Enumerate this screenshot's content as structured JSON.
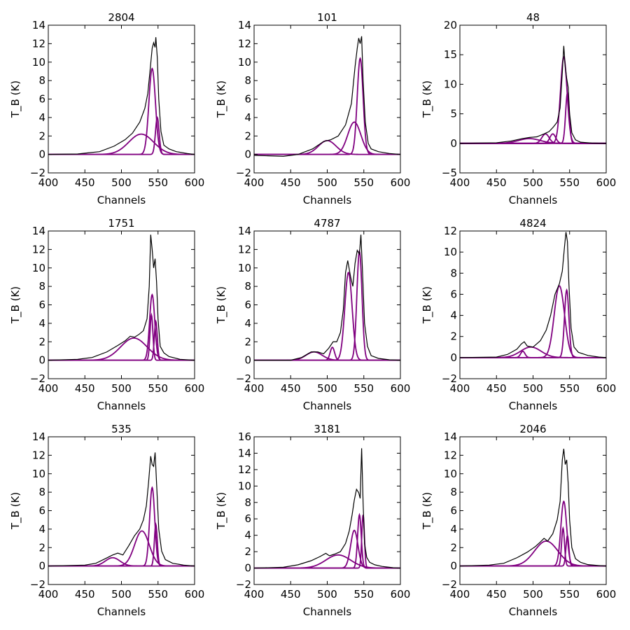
{
  "chart_data": [
    {
      "type": "line",
      "title": "2804",
      "xlabel": "Channels",
      "ylabel": "T_B (K)",
      "xlim": [
        400,
        600
      ],
      "ylim": [
        -2,
        14
      ],
      "xticks": [
        400,
        450,
        500,
        550,
        600
      ],
      "yticks": [
        -2,
        0,
        2,
        4,
        6,
        8,
        10,
        12,
        14
      ],
      "colors": {
        "spectrum": "#000000",
        "components": "#800080"
      },
      "components": [
        {
          "amp": 2.2,
          "center": 527,
          "width": 17
        },
        {
          "amp": 9.3,
          "center": 542,
          "width": 4.5
        },
        {
          "amp": 4.0,
          "center": 549,
          "width": 2.5
        }
      ],
      "spectrum": {
        "x": [
          400,
          440,
          470,
          490,
          505,
          515,
          525,
          532,
          536,
          539,
          542,
          544,
          546,
          547,
          549,
          551,
          554,
          558,
          565,
          575,
          590,
          600
        ],
        "y": [
          0.0,
          0.05,
          0.3,
          0.9,
          1.6,
          2.3,
          3.5,
          5.0,
          6.6,
          9.0,
          11.5,
          12.1,
          11.6,
          12.7,
          10.5,
          6.0,
          2.5,
          1.0,
          0.6,
          0.3,
          0.1,
          0.0
        ]
      }
    },
    {
      "type": "line",
      "title": "101",
      "xlabel": "Channels",
      "ylabel": "T_B (K)",
      "xlim": [
        400,
        600
      ],
      "ylim": [
        -2,
        14
      ],
      "xticks": [
        400,
        450,
        500,
        550,
        600
      ],
      "yticks": [
        -2,
        0,
        2,
        4,
        6,
        8,
        10,
        12,
        14
      ],
      "colors": {
        "spectrum": "#000000",
        "components": "#800080"
      },
      "components": [
        {
          "amp": 1.5,
          "center": 500,
          "width": 12
        },
        {
          "amp": 3.5,
          "center": 537,
          "width": 9
        },
        {
          "amp": 10.4,
          "center": 545,
          "width": 4
        }
      ],
      "spectrum": {
        "x": [
          400,
          440,
          460,
          480,
          495,
          505,
          515,
          525,
          533,
          538,
          541,
          543,
          545,
          547,
          549,
          552,
          556,
          560,
          570,
          585,
          600
        ],
        "y": [
          -0.1,
          -0.2,
          0.0,
          0.6,
          1.4,
          1.6,
          2.0,
          3.2,
          5.5,
          9.5,
          11.5,
          12.6,
          12.0,
          12.8,
          8.0,
          3.5,
          1.2,
          0.6,
          0.3,
          0.1,
          0.0
        ]
      }
    },
    {
      "type": "line",
      "title": "48",
      "xlabel": "Channels",
      "ylabel": "T_B (K)",
      "xlim": [
        400,
        600
      ],
      "ylim": [
        -5,
        20
      ],
      "xticks": [
        400,
        450,
        500,
        550,
        600
      ],
      "yticks": [
        -5,
        0,
        5,
        10,
        15,
        20
      ],
      "colors": {
        "spectrum": "#000000",
        "components": "#800080"
      },
      "components": [
        {
          "amp": 0.8,
          "center": 495,
          "width": 15
        },
        {
          "amp": 1.6,
          "center": 517,
          "width": 5
        },
        {
          "amp": 1.6,
          "center": 527,
          "width": 4
        },
        {
          "amp": 14.6,
          "center": 542,
          "width": 4.5
        },
        {
          "amp": 8.5,
          "center": 547,
          "width": 2.5
        }
      ],
      "spectrum": {
        "x": [
          400,
          450,
          470,
          485,
          495,
          505,
          515,
          522,
          528,
          533,
          537,
          540,
          542,
          544,
          546,
          548,
          550,
          553,
          558,
          565,
          580,
          600
        ],
        "y": [
          0.0,
          0.1,
          0.4,
          0.8,
          1.0,
          1.1,
          1.6,
          2.0,
          2.8,
          3.6,
          6.0,
          12.0,
          16.5,
          13.0,
          11.0,
          9.5,
          5.0,
          1.8,
          0.6,
          0.2,
          0.05,
          0.0
        ]
      }
    },
    {
      "type": "line",
      "title": "1751",
      "xlabel": "Channels",
      "ylabel": "T_B (K)",
      "xlim": [
        400,
        600
      ],
      "ylim": [
        -2,
        14
      ],
      "xticks": [
        400,
        450,
        500,
        550,
        600
      ],
      "yticks": [
        -2,
        0,
        2,
        4,
        6,
        8,
        10,
        12,
        14
      ],
      "colors": {
        "spectrum": "#000000",
        "components": "#800080"
      },
      "components": [
        {
          "amp": 2.4,
          "center": 517,
          "width": 18
        },
        {
          "amp": 7.1,
          "center": 542,
          "width": 3.5
        },
        {
          "amp": 4.9,
          "center": 541,
          "width": 2
        },
        {
          "amp": 4.2,
          "center": 547,
          "width": 2
        }
      ],
      "spectrum": {
        "x": [
          400,
          440,
          460,
          480,
          495,
          505,
          512,
          518,
          524,
          530,
          535,
          538,
          540,
          542,
          544,
          546,
          548,
          550,
          553,
          558,
          565,
          580,
          600
        ],
        "y": [
          0.0,
          0.1,
          0.3,
          0.9,
          1.6,
          2.1,
          2.6,
          2.5,
          2.8,
          3.2,
          4.5,
          8.0,
          13.6,
          12.0,
          10.0,
          11.0,
          8.5,
          4.5,
          1.5,
          0.8,
          0.4,
          0.1,
          0.0
        ]
      }
    },
    {
      "type": "line",
      "title": "4787",
      "xlabel": "Channels",
      "ylabel": "T_B (K)",
      "xlim": [
        400,
        600
      ],
      "ylim": [
        -2,
        14
      ],
      "xticks": [
        400,
        450,
        500,
        550,
        600
      ],
      "yticks": [
        -2,
        0,
        2,
        4,
        6,
        8,
        10,
        12,
        14
      ],
      "colors": {
        "spectrum": "#000000",
        "components": "#800080"
      },
      "components": [
        {
          "amp": 0.9,
          "center": 482,
          "width": 11
        },
        {
          "amp": 1.4,
          "center": 507,
          "width": 3
        },
        {
          "amp": 9.5,
          "center": 529,
          "width": 5
        },
        {
          "amp": 11.8,
          "center": 544,
          "width": 3.5
        }
      ],
      "spectrum": {
        "x": [
          400,
          450,
          465,
          478,
          487,
          495,
          502,
          508,
          513,
          518,
          522,
          525,
          528,
          532,
          535,
          538,
          541,
          544,
          546,
          548,
          551,
          555,
          560,
          570,
          585,
          600
        ],
        "y": [
          0.0,
          0.0,
          0.3,
          0.9,
          0.9,
          0.7,
          1.3,
          2.0,
          2.0,
          3.0,
          5.5,
          9.5,
          10.8,
          9.0,
          8.0,
          10.5,
          11.9,
          11.5,
          13.6,
          10.0,
          4.0,
          1.5,
          0.5,
          0.2,
          0.05,
          0.0
        ]
      }
    },
    {
      "type": "line",
      "title": "4824",
      "xlabel": "Channels",
      "ylabel": "T_B (K)",
      "xlim": [
        400,
        600
      ],
      "ylim": [
        -2,
        12
      ],
      "xticks": [
        400,
        450,
        500,
        550,
        600
      ],
      "yticks": [
        -2,
        0,
        2,
        4,
        6,
        8,
        10,
        12
      ],
      "colors": {
        "spectrum": "#000000",
        "components": "#800080"
      },
      "components": [
        {
          "amp": 0.6,
          "center": 486,
          "width": 3
        },
        {
          "amp": 1.0,
          "center": 497,
          "width": 14
        },
        {
          "amp": 6.8,
          "center": 536,
          "width": 7
        },
        {
          "amp": 6.4,
          "center": 546,
          "width": 3
        }
      ],
      "spectrum": {
        "x": [
          400,
          450,
          465,
          478,
          484,
          488,
          492,
          500,
          510,
          518,
          524,
          530,
          536,
          540,
          543,
          545,
          547,
          549,
          552,
          556,
          562,
          575,
          590,
          600
        ],
        "y": [
          0.0,
          0.05,
          0.3,
          0.8,
          1.3,
          1.5,
          1.1,
          1.0,
          1.6,
          2.6,
          4.0,
          6.0,
          7.0,
          8.2,
          10.5,
          11.9,
          11.0,
          7.0,
          2.8,
          1.0,
          0.5,
          0.2,
          0.05,
          0.0
        ]
      }
    },
    {
      "type": "line",
      "title": "535",
      "xlabel": "Channels",
      "ylabel": "T_B (K)",
      "xlim": [
        400,
        600
      ],
      "ylim": [
        -2,
        14
      ],
      "xticks": [
        400,
        450,
        500,
        550,
        600
      ],
      "yticks": [
        -2,
        0,
        2,
        4,
        6,
        8,
        10,
        12,
        14
      ],
      "colors": {
        "spectrum": "#000000",
        "components": "#800080"
      },
      "components": [
        {
          "amp": 0.9,
          "center": 488,
          "width": 10
        },
        {
          "amp": 3.8,
          "center": 528,
          "width": 10
        },
        {
          "amp": 8.5,
          "center": 542,
          "width": 3.5
        },
        {
          "amp": 4.5,
          "center": 547,
          "width": 2
        }
      ],
      "spectrum": {
        "x": [
          400,
          450,
          465,
          478,
          488,
          495,
          502,
          510,
          518,
          525,
          530,
          534,
          537,
          540,
          542,
          544,
          546,
          548,
          551,
          555,
          560,
          570,
          585,
          600
        ],
        "y": [
          0.0,
          0.1,
          0.3,
          0.8,
          1.2,
          1.4,
          1.2,
          2.2,
          3.3,
          4.0,
          5.0,
          6.5,
          9.0,
          11.9,
          11.0,
          10.8,
          12.3,
          9.0,
          4.0,
          1.6,
          0.7,
          0.3,
          0.1,
          0.0
        ]
      }
    },
    {
      "type": "line",
      "title": "3181",
      "xlabel": "Channels",
      "ylabel": "T_B (K)",
      "xlim": [
        400,
        600
      ],
      "ylim": [
        -2,
        16
      ],
      "xticks": [
        400,
        450,
        500,
        550,
        600
      ],
      "yticks": [
        -2,
        0,
        2,
        4,
        6,
        8,
        10,
        12,
        14,
        16
      ],
      "colors": {
        "spectrum": "#000000",
        "components": "#800080"
      },
      "components": [
        {
          "amp": 1.6,
          "center": 515,
          "width": 17
        },
        {
          "amp": 4.6,
          "center": 537,
          "width": 5
        },
        {
          "amp": 6.5,
          "center": 544,
          "width": 2.5
        },
        {
          "amp": 6.5,
          "center": 549,
          "width": 1.8
        }
      ],
      "spectrum": {
        "x": [
          400,
          440,
          460,
          478,
          490,
          498,
          503,
          510,
          518,
          525,
          530,
          534,
          537,
          540,
          543,
          545,
          547,
          549,
          551,
          554,
          558,
          565,
          575,
          590,
          600
        ],
        "y": [
          0.0,
          0.1,
          0.4,
          0.9,
          1.4,
          1.8,
          1.5,
          1.7,
          2.0,
          3.0,
          4.5,
          6.5,
          8.3,
          9.6,
          9.2,
          8.5,
          14.6,
          8.0,
          3.0,
          1.3,
          0.7,
          0.4,
          0.2,
          0.05,
          0.0
        ]
      }
    },
    {
      "type": "line",
      "title": "2046",
      "xlabel": "Channels",
      "ylabel": "T_B (K)",
      "xlim": [
        400,
        600
      ],
      "ylim": [
        -2,
        14
      ],
      "xticks": [
        400,
        450,
        500,
        550,
        600
      ],
      "yticks": [
        -2,
        0,
        2,
        4,
        6,
        8,
        10,
        12,
        14
      ],
      "colors": {
        "spectrum": "#000000",
        "components": "#800080"
      },
      "components": [
        {
          "amp": 2.7,
          "center": 518,
          "width": 16
        },
        {
          "amp": 7.0,
          "center": 542,
          "width": 4
        },
        {
          "amp": 4.1,
          "center": 541,
          "width": 2
        },
        {
          "amp": 3.3,
          "center": 547,
          "width": 2
        }
      ],
      "spectrum": {
        "x": [
          400,
          440,
          460,
          478,
          492,
          503,
          510,
          515,
          520,
          527,
          533,
          537,
          540,
          542,
          544,
          546,
          548,
          550,
          553,
          558,
          565,
          575,
          590,
          600
        ],
        "y": [
          0.0,
          0.1,
          0.3,
          0.9,
          1.5,
          2.1,
          2.6,
          3.0,
          2.7,
          3.5,
          5.0,
          7.0,
          11.5,
          12.7,
          11.0,
          11.5,
          9.0,
          5.0,
          2.0,
          0.8,
          0.4,
          0.15,
          0.05,
          0.0
        ]
      }
    }
  ]
}
